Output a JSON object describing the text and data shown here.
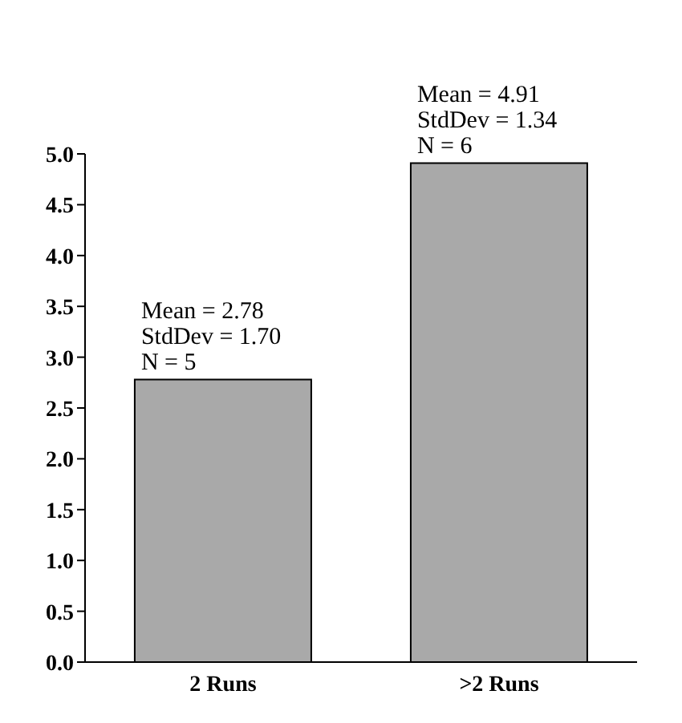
{
  "chart_data": {
    "type": "bar",
    "categories": [
      "2 Runs",
      ">2 Runs"
    ],
    "values": [
      2.78,
      4.91
    ],
    "color": "#a9a9a9",
    "ylim": [
      0,
      5
    ],
    "yticks": [
      {
        "value": 0,
        "label": "0.0"
      },
      0.5,
      {
        "value": 1,
        "label": "1.0"
      },
      1.5,
      {
        "value": 2,
        "label": "2.0"
      },
      2.5,
      {
        "value": 3,
        "label": "3.0"
      },
      3.5,
      {
        "value": 4,
        "label": "4.0"
      },
      4.5,
      {
        "value": 5,
        "label": "5.0"
      }
    ],
    "annotations": [
      {
        "text": "Mean = 2.78\nStdDev = 1.70\nN = 5",
        "x": "2 Runs",
        "y": 2.78
      },
      {
        "text": "Mean = 4.91\nStdDev = 1.34\nN = 6",
        "x": ">2 Runs",
        "y": 4.91
      }
    ],
    "grid": false,
    "legend": false
  }
}
